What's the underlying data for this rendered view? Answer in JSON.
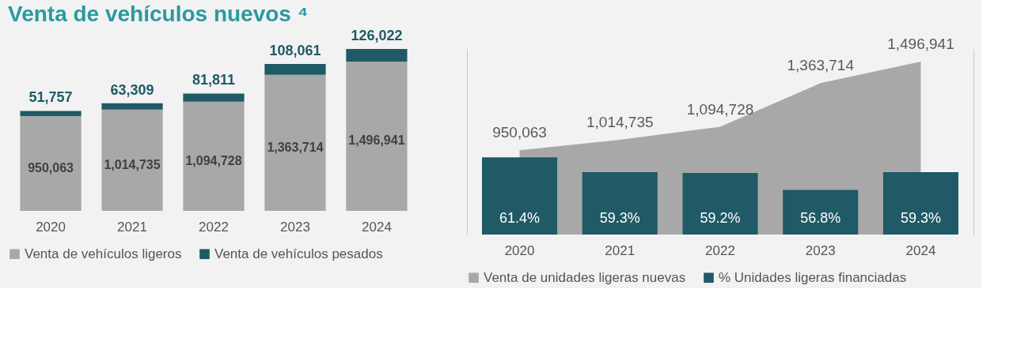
{
  "chart_data": [
    {
      "type": "bar",
      "title": "Venta de vehículos nuevos ⁴",
      "categories": [
        "2020",
        "2021",
        "2022",
        "2023",
        "2024"
      ],
      "stacked": true,
      "series": [
        {
          "name": "Venta de vehículos ligeros",
          "color": "#a8a8a8",
          "values": [
            950063,
            1014735,
            1094728,
            1363714,
            1496941
          ],
          "value_labels": [
            "950,063",
            "1,014,735",
            "1,094,728",
            "1,363,714",
            "1,496,941"
          ]
        },
        {
          "name": "Venta de vehículos pesados",
          "color": "#1f5a66",
          "values": [
            51757,
            63309,
            81811,
            108061,
            126022
          ],
          "value_labels": [
            "51,757",
            "63,309",
            "81,811",
            "108,061",
            "126,022"
          ]
        }
      ],
      "tick_labels": "x",
      "legend": "bottom",
      "grid": false
    },
    {
      "type": "bar",
      "categories": [
        "2020",
        "2021",
        "2022",
        "2023",
        "2024"
      ],
      "series": [
        {
          "name": "Venta de unidades ligeras nuevas",
          "type": "area",
          "color": "#a8a8a8",
          "values": [
            950063,
            1014735,
            1094728,
            1363714,
            1496941
          ],
          "value_labels": [
            "950,063",
            "1,014,735",
            "1,094,728",
            "1,363,714",
            "1,496,941"
          ]
        },
        {
          "name": "% Unidades ligeras financiadas",
          "type": "bar",
          "axis": "y2",
          "color": "#1f5a66",
          "values": [
            61.4,
            59.3,
            59.2,
            56.8,
            59.3
          ],
          "value_labels": [
            "61.4%",
            "59.3%",
            "59.2%",
            "56.8%",
            "59.3%"
          ]
        }
      ],
      "ylim": [
        430000,
        1575000
      ],
      "y2lim": [
        50.5,
        76.7
      ],
      "tick_labels": "x",
      "legend": "bottom",
      "grid": false
    }
  ]
}
